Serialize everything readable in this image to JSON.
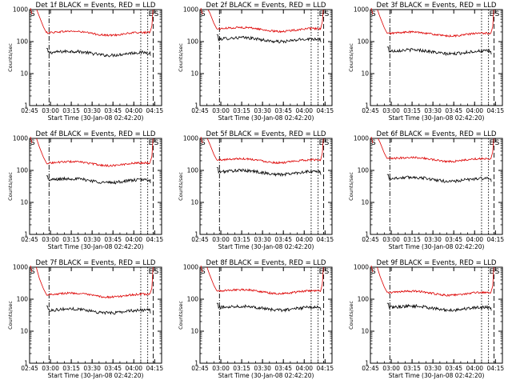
{
  "figure": {
    "background": "#ffffff",
    "axis_color": "#000000",
    "events_color": "#000000",
    "lld_color": "#dd0000"
  },
  "chart_data": [
    {
      "type": "line",
      "title": "Det 1f BLACK = Events, RED = LLD",
      "xlabel": "Start Time (30-Jan-08 02:42:20)",
      "ylabel": "Counts/sec",
      "yscale": "log",
      "ylim": [
        1,
        1000
      ],
      "xlim": [
        "02:45",
        "04:20"
      ],
      "xticks": [
        "02:45",
        "03:00",
        "03:15",
        "03:30",
        "03:45",
        "04:00",
        "04:15"
      ],
      "yticks": [
        "1",
        "10",
        "100",
        "1000"
      ],
      "series": [
        {
          "name": "BLACK = Events",
          "color": "#000000",
          "level": 45
        },
        {
          "name": "RED = LLD",
          "color": "#dd0000",
          "level": 190
        }
      ],
      "markers": [
        {
          "label": "S",
          "time": "02:45"
        },
        {
          "label": "E",
          "time": "04:10"
        },
        {
          "label": "S",
          "time": "04:14"
        }
      ]
    },
    {
      "type": "line",
      "title": "Det 2f BLACK = Events, RED = LLD",
      "xlabel": "Start Time (30-Jan-08 02:42:20)",
      "ylabel": "Counts/sec",
      "yscale": "log",
      "ylim": [
        1,
        1000
      ],
      "xlim": [
        "02:45",
        "04:20"
      ],
      "xticks": [
        "02:45",
        "03:00",
        "03:15",
        "03:30",
        "03:45",
        "04:00",
        "04:15"
      ],
      "yticks": [
        "1",
        "10",
        "100",
        "1000"
      ],
      "series": [
        {
          "name": "BLACK = Events",
          "color": "#000000",
          "level": 120
        },
        {
          "name": "RED = LLD",
          "color": "#dd0000",
          "level": 250
        }
      ],
      "markers": [
        {
          "label": "S",
          "time": "02:45"
        },
        {
          "label": "E",
          "time": "04:10"
        },
        {
          "label": "S",
          "time": "04:14"
        }
      ]
    },
    {
      "type": "line",
      "title": "Det 3f BLACK = Events, RED = LLD",
      "xlabel": "Start Time (30-Jan-08 02:42:20)",
      "ylabel": "Counts/sec",
      "yscale": "log",
      "ylim": [
        1,
        1000
      ],
      "xlim": [
        "02:45",
        "04:20"
      ],
      "xticks": [
        "02:45",
        "03:00",
        "03:15",
        "03:30",
        "03:45",
        "04:00",
        "04:15"
      ],
      "yticks": [
        "1",
        "10",
        "100",
        "1000"
      ],
      "series": [
        {
          "name": "BLACK = Events",
          "color": "#000000",
          "level": 50
        },
        {
          "name": "RED = LLD",
          "color": "#dd0000",
          "level": 180
        }
      ],
      "markers": [
        {
          "label": "S",
          "time": "02:45"
        },
        {
          "label": "E",
          "time": "04:10"
        },
        {
          "label": "S",
          "time": "04:14"
        }
      ]
    },
    {
      "type": "line",
      "title": "Det 4f BLACK = Events, RED = LLD",
      "xlabel": "Start Time (30-Jan-08 02:42:20)",
      "ylabel": "Counts/sec",
      "yscale": "log",
      "ylim": [
        1,
        1000
      ],
      "xlim": [
        "02:45",
        "04:20"
      ],
      "xticks": [
        "02:45",
        "03:00",
        "03:15",
        "03:30",
        "03:45",
        "04:00",
        "04:15"
      ],
      "yticks": [
        "1",
        "10",
        "100",
        "1000"
      ],
      "series": [
        {
          "name": "BLACK = Events",
          "color": "#000000",
          "level": 50
        },
        {
          "name": "RED = LLD",
          "color": "#dd0000",
          "level": 170
        }
      ],
      "markers": [
        {
          "label": "S",
          "time": "02:45"
        },
        {
          "label": "E",
          "time": "04:10"
        },
        {
          "label": "S",
          "time": "04:14"
        }
      ]
    },
    {
      "type": "line",
      "title": "Det 5f BLACK = Events, RED = LLD",
      "xlabel": "Start Time (30-Jan-08 02:42:20)",
      "ylabel": "Counts/sec",
      "yscale": "log",
      "ylim": [
        1,
        1000
      ],
      "xlim": [
        "02:45",
        "04:20"
      ],
      "xticks": [
        "02:45",
        "03:00",
        "03:15",
        "03:30",
        "03:45",
        "04:00",
        "04:15"
      ],
      "yticks": [
        "1",
        "10",
        "100",
        "1000"
      ],
      "series": [
        {
          "name": "BLACK = Events",
          "color": "#000000",
          "level": 90
        },
        {
          "name": "RED = LLD",
          "color": "#dd0000",
          "level": 210
        }
      ],
      "markers": [
        {
          "label": "S",
          "time": "02:45"
        },
        {
          "label": "E",
          "time": "04:10"
        },
        {
          "label": "S",
          "time": "04:14"
        }
      ]
    },
    {
      "type": "line",
      "title": "Det 6f BLACK = Events, RED = LLD",
      "xlabel": "Start Time (30-Jan-08 02:42:20)",
      "ylabel": "Counts/sec",
      "yscale": "log",
      "ylim": [
        1,
        1000
      ],
      "xlim": [
        "02:45",
        "04:20"
      ],
      "xticks": [
        "02:45",
        "03:00",
        "03:15",
        "03:30",
        "03:45",
        "04:00",
        "04:15"
      ],
      "yticks": [
        "1",
        "10",
        "100",
        "1000"
      ],
      "series": [
        {
          "name": "BLACK = Events",
          "color": "#000000",
          "level": 55
        },
        {
          "name": "RED = LLD",
          "color": "#dd0000",
          "level": 230
        }
      ],
      "markers": [
        {
          "label": "S",
          "time": "02:45"
        },
        {
          "label": "E",
          "time": "04:10"
        },
        {
          "label": "S",
          "time": "04:14"
        }
      ]
    },
    {
      "type": "line",
      "title": "Det 7f BLACK = Events, RED = LLD",
      "xlabel": "Start Time (30-Jan-08 02:42:20)",
      "ylabel": "Counts/sec",
      "yscale": "log",
      "ylim": [
        1,
        1000
      ],
      "xlim": [
        "02:45",
        "04:20"
      ],
      "xticks": [
        "02:45",
        "03:00",
        "03:15",
        "03:30",
        "03:45",
        "04:00",
        "04:15"
      ],
      "yticks": [
        "1",
        "10",
        "100",
        "1000"
      ],
      "series": [
        {
          "name": "BLACK = Events",
          "color": "#000000",
          "level": 45
        },
        {
          "name": "RED = LLD",
          "color": "#dd0000",
          "level": 140
        }
      ],
      "markers": [
        {
          "label": "S",
          "time": "02:45"
        },
        {
          "label": "E",
          "time": "04:10"
        },
        {
          "label": "S",
          "time": "04:14"
        }
      ]
    },
    {
      "type": "line",
      "title": "Det 8f BLACK = Events, RED = LLD",
      "xlabel": "Start Time (30-Jan-08 02:42:20)",
      "ylabel": "Counts/sec",
      "yscale": "log",
      "ylim": [
        1,
        1000
      ],
      "xlim": [
        "02:45",
        "04:20"
      ],
      "xticks": [
        "02:45",
        "03:00",
        "03:15",
        "03:30",
        "03:45",
        "04:00",
        "04:15"
      ],
      "yticks": [
        "1",
        "10",
        "100",
        "1000"
      ],
      "series": [
        {
          "name": "BLACK = Events",
          "color": "#000000",
          "level": 55
        },
        {
          "name": "RED = LLD",
          "color": "#dd0000",
          "level": 180
        }
      ],
      "markers": [
        {
          "label": "S",
          "time": "02:45"
        },
        {
          "label": "E",
          "time": "04:10"
        },
        {
          "label": "S",
          "time": "04:14"
        }
      ]
    },
    {
      "type": "line",
      "title": "Det 9f BLACK = Events, RED = LLD",
      "xlabel": "Start Time (30-Jan-08 02:42:20)",
      "ylabel": "Counts/sec",
      "yscale": "log",
      "ylim": [
        1,
        1000
      ],
      "xlim": [
        "02:45",
        "04:20"
      ],
      "xticks": [
        "02:45",
        "03:00",
        "03:15",
        "03:30",
        "03:45",
        "04:00",
        "04:15"
      ],
      "yticks": [
        "1",
        "10",
        "100",
        "1000"
      ],
      "series": [
        {
          "name": "BLACK = Events",
          "color": "#000000",
          "level": 55
        },
        {
          "name": "RED = LLD",
          "color": "#dd0000",
          "level": 160
        }
      ],
      "markers": [
        {
          "label": "S",
          "time": "02:45"
        },
        {
          "label": "E",
          "time": "04:10"
        },
        {
          "label": "S",
          "time": "04:14"
        }
      ]
    }
  ]
}
